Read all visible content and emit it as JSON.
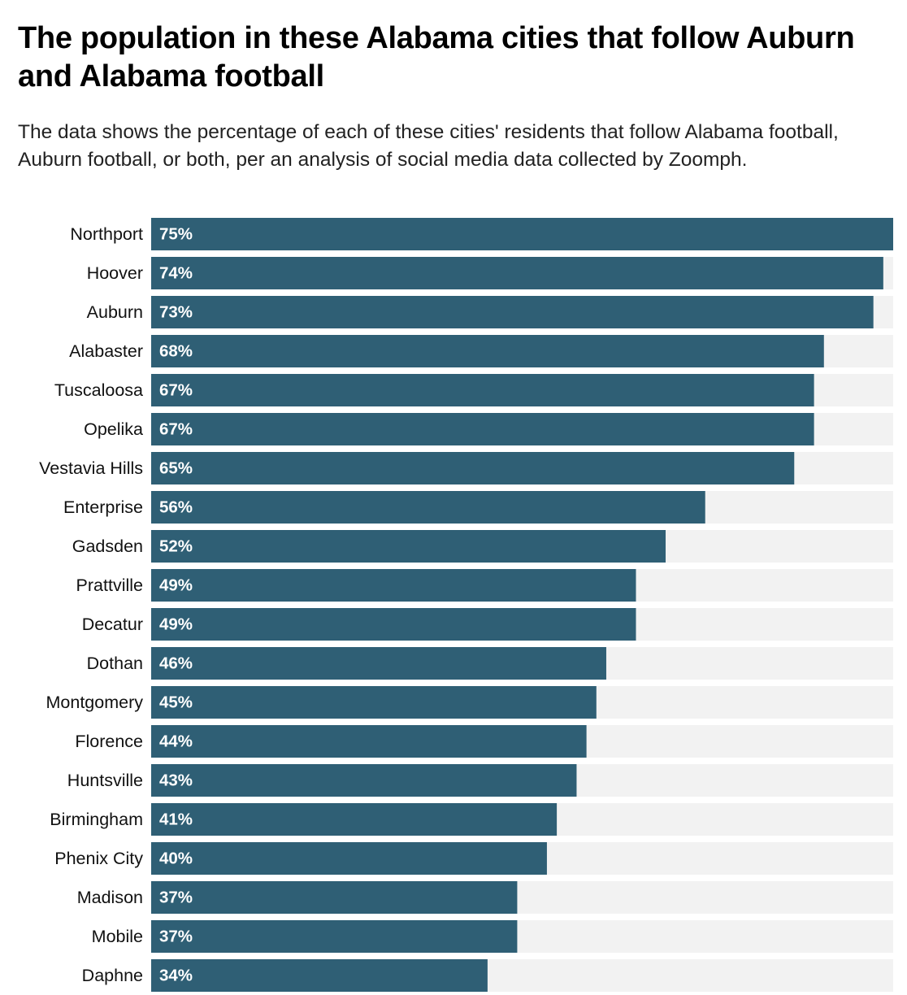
{
  "chart_data": {
    "type": "bar",
    "orientation": "horizontal",
    "title": "The population in these Alabama cities that follow Auburn and Alabama football",
    "subtitle": "The data shows the percentage of each of these cities' residents that follow Alabama football, Auburn football, or both, per an analysis of social media data collected by Zoomph.",
    "categories": [
      "Northport",
      "Hoover",
      "Auburn",
      "Alabaster",
      "Tuscaloosa",
      "Opelika",
      "Vestavia Hills",
      "Enterprise",
      "Gadsden",
      "Prattville",
      "Decatur",
      "Dothan",
      "Montgomery",
      "Florence",
      "Huntsville",
      "Birmingham",
      "Phenix City",
      "Madison",
      "Mobile",
      "Daphne"
    ],
    "values": [
      75,
      74,
      73,
      68,
      67,
      67,
      65,
      56,
      52,
      49,
      49,
      46,
      45,
      44,
      43,
      41,
      40,
      37,
      37,
      34
    ],
    "value_labels": [
      "75%",
      "74%",
      "73%",
      "68%",
      "67%",
      "67%",
      "65%",
      "56%",
      "52%",
      "49%",
      "49%",
      "46%",
      "45%",
      "44%",
      "43%",
      "41%",
      "40%",
      "37%",
      "37%",
      "34%"
    ],
    "xlim": [
      0,
      75
    ],
    "unit": "%",
    "bar_color": "#2f5f75",
    "track_color": "#f2f2f2"
  }
}
